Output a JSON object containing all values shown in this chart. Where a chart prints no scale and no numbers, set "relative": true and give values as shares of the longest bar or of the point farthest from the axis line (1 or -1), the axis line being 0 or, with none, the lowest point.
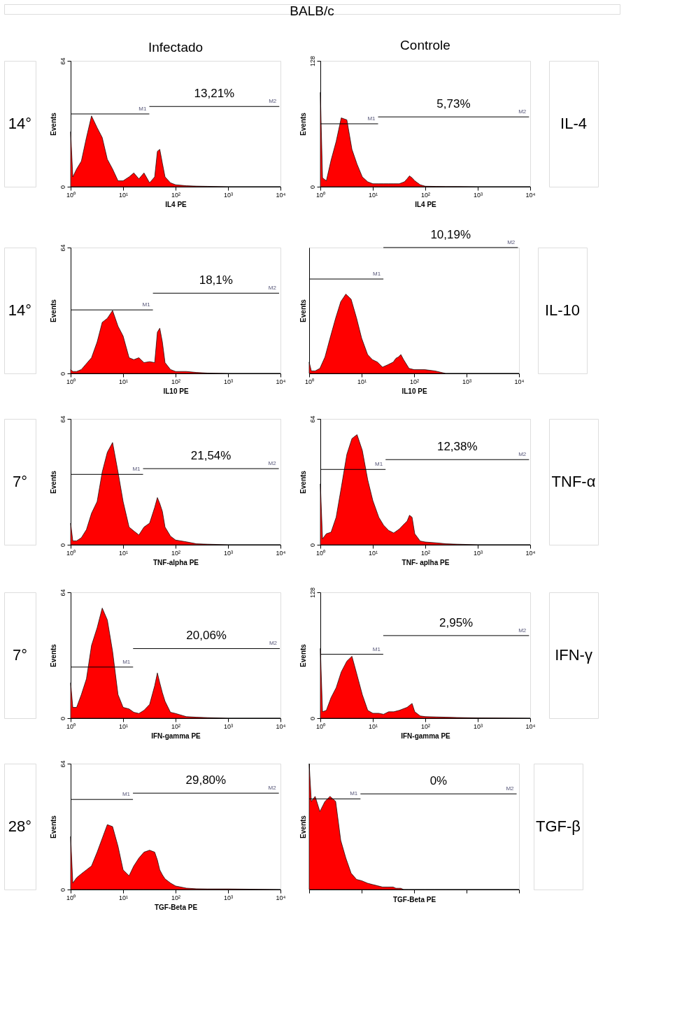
{
  "chart_data": [
    {
      "type": "area",
      "title": "Infectado",
      "subtitle": "BALB/c",
      "xlabel": "IL4 PE",
      "ylabel": "Events",
      "log": "x",
      "grid": false,
      "legend": false,
      "marker": "none",
      "x": [
        1,
        1.1,
        1.3,
        1.6,
        2,
        2.5,
        3.2,
        4,
        5,
        6.3,
        8,
        10,
        13,
        16,
        20,
        25,
        32,
        40,
        45,
        50,
        56,
        63,
        80,
        100,
        160,
        250,
        400,
        1000,
        10000
      ],
      "xlim": [
        1,
        10000
      ],
      "xticks": [
        {
          "value": 1,
          "label": "10⁰"
        },
        {
          "value": 10,
          "label": "10¹"
        },
        {
          "value": 100,
          "label": "10²"
        },
        {
          "value": 1000,
          "label": "10³"
        },
        {
          "value": 10000,
          "label": "10⁴"
        }
      ],
      "ylim": [
        0,
        64
      ],
      "yticks": [
        0,
        64
      ],
      "series": [
        {
          "type": "area",
          "color": "#ff0000",
          "values": [
            28,
            5,
            9,
            13,
            25,
            36,
            30,
            25,
            14,
            9,
            3,
            3,
            5,
            7,
            4,
            7,
            2,
            5,
            18,
            19,
            12,
            5,
            2,
            1,
            0.5,
            0.3,
            0.2,
            0,
            0
          ]
        },
        {
          "type": "line",
          "name": "M1",
          "color": "#000000",
          "x": [
            1,
            31.6
          ],
          "values": [
            37,
            37
          ]
        },
        {
          "type": "line",
          "name": "M2",
          "color": "#000000",
          "x": [
            31.6,
            9500
          ],
          "values": [
            40.8,
            40.8
          ]
        }
      ],
      "annotations": [
        "13,21%",
        "14°"
      ]
    },
    {
      "type": "area",
      "title": "Controle",
      "xlabel": "IL4 PE",
      "ylabel": "Events",
      "log": "x",
      "grid": false,
      "legend": false,
      "marker": "none",
      "x": [
        1,
        1.1,
        1.3,
        1.6,
        2,
        2.5,
        3.2,
        4,
        5,
        6.3,
        8,
        10,
        13,
        16,
        20,
        25,
        32,
        40,
        45,
        50,
        56,
        63,
        80,
        100,
        160,
        250,
        400,
        1000,
        10000
      ],
      "xlim": [
        1,
        10000
      ],
      "xticks": [
        {
          "value": 1,
          "label": "10⁰"
        },
        {
          "value": 10,
          "label": "10¹"
        },
        {
          "value": 100,
          "label": "10²"
        },
        {
          "value": 1000,
          "label": "10³"
        },
        {
          "value": 10000,
          "label": "10⁴"
        }
      ],
      "ylim": [
        0,
        128
      ],
      "yticks": [
        0,
        128
      ],
      "series": [
        {
          "type": "area",
          "color": "#ff0000",
          "values": [
            96,
            9,
            6,
            27,
            46,
            70,
            68,
            38,
            23,
            10,
            5,
            3,
            3,
            3,
            3,
            3,
            3,
            5,
            8,
            11,
            9,
            6,
            2,
            0.5,
            0.3,
            0.2,
            0.2,
            0,
            0
          ]
        },
        {
          "type": "line",
          "name": "M1",
          "color": "#000000",
          "x": [
            1,
            12.6
          ],
          "values": [
            64,
            64
          ]
        },
        {
          "type": "line",
          "name": "M2",
          "color": "#000000",
          "x": [
            12.6,
            9500
          ],
          "values": [
            71,
            71
          ]
        }
      ],
      "annotations": [
        "5,73%",
        "IL-4"
      ]
    },
    {
      "type": "area",
      "xlabel": "IL10 PE",
      "ylabel": "Events",
      "log": "x",
      "grid": false,
      "legend": false,
      "marker": "none",
      "x": [
        1,
        1.1,
        1.3,
        1.6,
        2,
        2.5,
        3.2,
        4,
        5,
        6.3,
        8,
        10,
        13,
        16,
        20,
        25,
        32,
        40,
        45,
        50,
        56,
        63,
        80,
        100,
        160,
        250,
        400,
        1000,
        10000
      ],
      "xlim": [
        1,
        10000
      ],
      "xticks": [
        {
          "value": 1,
          "label": "10⁰"
        },
        {
          "value": 10,
          "label": "10¹"
        },
        {
          "value": 100,
          "label": "10²"
        },
        {
          "value": 1000,
          "label": "10³"
        },
        {
          "value": 10000,
          "label": "10⁴"
        }
      ],
      "ylim": [
        0,
        64
      ],
      "yticks": [
        0,
        64
      ],
      "series": [
        {
          "type": "area",
          "color": "#ff0000",
          "values": [
            2,
            1,
            1,
            2,
            5,
            8,
            16,
            26,
            28,
            32,
            24,
            19,
            8,
            7,
            8,
            5.5,
            6,
            5.5,
            21,
            23,
            16,
            5.5,
            2,
            1,
            1,
            0.5,
            0.2,
            0,
            0
          ]
        },
        {
          "type": "line",
          "name": "M1",
          "color": "#000000",
          "x": [
            1,
            37
          ],
          "values": [
            32.3,
            32.3
          ]
        },
        {
          "type": "line",
          "name": "M2",
          "color": "#000000",
          "x": [
            37,
            9400
          ],
          "values": [
            40.8,
            40.8
          ]
        }
      ],
      "annotations": [
        "18,1%",
        "14°"
      ]
    },
    {
      "type": "area",
      "relative": true,
      "tick_labels": "x",
      "xlabel": "IL10 PE",
      "ylabel": "Events",
      "log": "x",
      "grid": false,
      "legend": false,
      "marker": "none",
      "x": [
        1,
        1.1,
        1.3,
        1.6,
        2,
        2.5,
        3.2,
        4,
        5,
        6.3,
        8,
        10,
        13,
        16,
        20,
        25,
        32,
        40,
        45,
        50,
        56,
        63,
        80,
        100,
        160,
        250,
        400,
        1000,
        10000
      ],
      "xlim": [
        1,
        10000
      ],
      "xticks": [
        {
          "value": 1,
          "label": "10⁰"
        },
        {
          "value": 10,
          "label": "10¹"
        },
        {
          "value": 100,
          "label": "10²"
        },
        {
          "value": 1000,
          "label": "10³"
        },
        {
          "value": 10000,
          "label": "10⁴"
        }
      ],
      "series": [
        {
          "type": "area",
          "color": "#ff0000",
          "values": [
            0.09,
            0.02,
            0.02,
            0.04,
            0.13,
            0.28,
            0.44,
            0.57,
            0.63,
            0.59,
            0.44,
            0.28,
            0.15,
            0.11,
            0.09,
            0.05,
            0.07,
            0.09,
            0.12,
            0.13,
            0.15,
            0.11,
            0.04,
            0.03,
            0.03,
            0.02,
            0,
            0,
            0
          ]
        },
        {
          "type": "line",
          "name": "M1",
          "color": "#000000",
          "x": [
            1,
            26
          ],
          "values": [
            0.75,
            0.75
          ]
        },
        {
          "type": "line",
          "name": "M2",
          "color": "#000000",
          "x": [
            26,
            9500
          ],
          "values": [
            1,
            1
          ]
        }
      ],
      "annotations": [
        "10,19%",
        "IL-10"
      ]
    },
    {
      "type": "area",
      "xlabel": "TNF-alpha PE",
      "ylabel": "Events",
      "log": "x",
      "grid": false,
      "legend": false,
      "marker": "none",
      "x": [
        1,
        1.1,
        1.3,
        1.6,
        2,
        2.5,
        3.2,
        4,
        5,
        6.3,
        8,
        10,
        13,
        16,
        20,
        25,
        32,
        40,
        45,
        50,
        56,
        63,
        80,
        100,
        160,
        250,
        400,
        1000,
        10000
      ],
      "xlim": [
        1,
        10000
      ],
      "xticks": [
        {
          "value": 1,
          "label": "10⁰"
        },
        {
          "value": 10,
          "label": "10¹"
        },
        {
          "value": 100,
          "label": "10²"
        },
        {
          "value": 1000,
          "label": "10³"
        },
        {
          "value": 10000,
          "label": "10⁴"
        }
      ],
      "ylim": [
        0,
        64
      ],
      "yticks": [
        0,
        64
      ],
      "series": [
        {
          "type": "area",
          "color": "#ff0000",
          "values": [
            11,
            2,
            2,
            3.6,
            7.7,
            16,
            22,
            37,
            47,
            52,
            37,
            22,
            9,
            7,
            5,
            9,
            11,
            19,
            24,
            21,
            17,
            9,
            4.4,
            2.4,
            1.5,
            0.5,
            0.3,
            0,
            0
          ]
        },
        {
          "type": "line",
          "name": "M1",
          "color": "#000000",
          "x": [
            1,
            24
          ],
          "values": [
            35.8,
            35.8
          ]
        },
        {
          "type": "line",
          "name": "M2",
          "color": "#000000",
          "x": [
            24,
            9300
          ],
          "values": [
            38.7,
            38.7
          ]
        }
      ],
      "annotations": [
        "21,54%",
        "7°"
      ]
    },
    {
      "type": "area",
      "xlabel": "TNF- aplha PE",
      "ylabel": "Events",
      "log": "x",
      "grid": false,
      "legend": false,
      "marker": "none",
      "x": [
        1,
        1.1,
        1.3,
        1.6,
        2,
        2.5,
        3.2,
        4,
        5,
        6.3,
        8,
        10,
        13,
        16,
        20,
        25,
        32,
        40,
        45,
        50,
        56,
        63,
        80,
        100,
        160,
        250,
        400,
        1000,
        10000
      ],
      "xlim": [
        1,
        10000
      ],
      "xticks": [
        {
          "value": 1,
          "label": "10⁰"
        },
        {
          "value": 10,
          "label": "10¹"
        },
        {
          "value": 100,
          "label": "10²"
        },
        {
          "value": 1000,
          "label": "10³"
        },
        {
          "value": 10000,
          "label": "10⁴"
        }
      ],
      "ylim": [
        0,
        64
      ],
      "yticks": [
        0,
        64
      ],
      "series": [
        {
          "type": "area",
          "color": "#ff0000",
          "values": [
            31,
            3,
            5.6,
            6.4,
            14,
            29,
            46,
            54,
            56,
            48,
            33,
            22.5,
            14,
            10,
            7.3,
            6,
            8,
            10.7,
            12,
            15,
            14,
            5.6,
            1.9,
            1.4,
            1,
            0.5,
            0.3,
            0,
            0
          ]
        },
        {
          "type": "line",
          "name": "M1",
          "color": "#000000",
          "x": [
            1,
            17.5
          ],
          "values": [
            38.3,
            38.3
          ]
        },
        {
          "type": "line",
          "name": "M2",
          "color": "#000000",
          "x": [
            17.5,
            9500
          ],
          "values": [
            43.3,
            43.3
          ]
        }
      ],
      "annotations": [
        "12,38%",
        "TNF-α"
      ]
    },
    {
      "type": "area",
      "xlabel": "IFN-gamma PE",
      "ylabel": "Events",
      "log": "x",
      "grid": false,
      "legend": false,
      "marker": "none",
      "x": [
        1,
        1.1,
        1.3,
        1.6,
        2,
        2.5,
        3.2,
        4,
        5,
        6.3,
        8,
        10,
        13,
        16,
        20,
        25,
        32,
        40,
        45,
        50,
        56,
        63,
        80,
        100,
        160,
        250,
        400,
        1000,
        10000
      ],
      "xlim": [
        1,
        10000
      ],
      "xticks": [
        {
          "value": 1,
          "label": "10⁰"
        },
        {
          "value": 10,
          "label": "10¹"
        },
        {
          "value": 100,
          "label": "10²"
        },
        {
          "value": 1000,
          "label": "10³"
        },
        {
          "value": 10000,
          "label": "10⁴"
        }
      ],
      "ylim": [
        0,
        64
      ],
      "yticks": [
        0,
        64
      ],
      "series": [
        {
          "type": "area",
          "color": "#ff0000",
          "values": [
            18,
            5.5,
            5.5,
            12,
            20,
            37,
            46,
            56,
            50,
            34,
            12,
            5.5,
            4.7,
            3,
            2.4,
            4,
            7,
            16.5,
            23,
            18,
            13,
            8.6,
            3,
            2.4,
            0.8,
            0.5,
            0.3,
            0,
            0
          ]
        },
        {
          "type": "line",
          "name": "M1",
          "color": "#000000",
          "x": [
            1,
            15.5
          ],
          "values": [
            26,
            26
          ]
        },
        {
          "type": "line",
          "name": "M2",
          "color": "#000000",
          "x": [
            15.5,
            9700
          ],
          "values": [
            35.4,
            35.4
          ]
        }
      ],
      "annotations": [
        "20,06%",
        "7°"
      ]
    },
    {
      "type": "area",
      "xlabel": "IFN-gamma PE",
      "ylabel": "Events",
      "log": "x",
      "grid": false,
      "legend": false,
      "marker": "none",
      "x": [
        1,
        1.1,
        1.3,
        1.6,
        2,
        2.5,
        3.2,
        4,
        5,
        6.3,
        8,
        10,
        13,
        16,
        20,
        25,
        32,
        40,
        45,
        50,
        56,
        63,
        80,
        100,
        160,
        250,
        400,
        1000,
        10000
      ],
      "xlim": [
        1,
        10000
      ],
      "xticks": [
        {
          "value": 1,
          "label": "10⁰"
        },
        {
          "value": 10,
          "label": "10¹"
        },
        {
          "value": 100,
          "label": "10²"
        },
        {
          "value": 1000,
          "label": "10³"
        },
        {
          "value": 10000,
          "label": "10⁴"
        }
      ],
      "ylim": [
        0,
        128
      ],
      "yticks": [
        0,
        128
      ],
      "series": [
        {
          "type": "area",
          "color": "#ff0000",
          "values": [
            71,
            6.5,
            8,
            21,
            31,
            47,
            58,
            63,
            44,
            24,
            8,
            5,
            5,
            4,
            6.5,
            6.5,
            8,
            10,
            11,
            13,
            15,
            6.5,
            2.3,
            1.6,
            1.3,
            1,
            0.7,
            0.3,
            0
          ]
        },
        {
          "type": "line",
          "name": "M1",
          "color": "#000000",
          "x": [
            1,
            15.8
          ],
          "values": [
            65,
            65
          ]
        },
        {
          "type": "line",
          "name": "M2",
          "color": "#000000",
          "x": [
            15.8,
            9500
          ],
          "values": [
            84,
            84
          ]
        }
      ],
      "annotations": [
        "2,95%",
        "IFN-γ"
      ]
    },
    {
      "type": "area",
      "xlabel": "TGF-Beta PE",
      "ylabel": "Events",
      "log": "x",
      "grid": false,
      "legend": false,
      "marker": "none",
      "x": [
        1,
        1.1,
        1.3,
        1.6,
        2,
        2.5,
        3.2,
        4,
        5,
        6.3,
        8,
        10,
        13,
        16,
        20,
        25,
        32,
        40,
        45,
        50,
        56,
        63,
        80,
        100,
        160,
        250,
        400,
        1000,
        10000
      ],
      "xlim": [
        1,
        10000
      ],
      "xticks": [
        {
          "value": 1,
          "label": "10⁰"
        },
        {
          "value": 10,
          "label": "10¹"
        },
        {
          "value": 100,
          "label": "10²"
        },
        {
          "value": 1000,
          "label": "10³"
        },
        {
          "value": 10000,
          "label": "10⁴"
        }
      ],
      "ylim": [
        0,
        64
      ],
      "yticks": [
        0,
        64
      ],
      "series": [
        {
          "type": "area",
          "color": "#ff0000",
          "values": [
            27,
            3.3,
            6,
            8,
            10,
            12,
            19,
            26,
            33,
            32,
            22,
            10,
            7,
            12,
            16,
            19,
            20,
            19,
            15,
            10,
            7.5,
            5.4,
            3.3,
            1.8,
            0.7,
            0.4,
            0.3,
            0.3,
            0
          ]
        },
        {
          "type": "line",
          "name": "M1",
          "color": "#000000",
          "x": [
            1,
            15.4
          ],
          "values": [
            45.8,
            45.8
          ]
        },
        {
          "type": "line",
          "name": "M2",
          "color": "#000000",
          "x": [
            15.4,
            9300
          ],
          "values": [
            49,
            49
          ]
        }
      ],
      "annotations": [
        "29,80%",
        "28°"
      ]
    },
    {
      "type": "area",
      "relative": true,
      "tick_labels": false,
      "xlabel": "TGF-Beta PE",
      "ylabel": "Events",
      "log": "x",
      "grid": false,
      "legend": false,
      "marker": "none",
      "x": [
        1,
        1.1,
        1.3,
        1.6,
        2,
        2.5,
        3.2,
        4,
        5,
        6.3,
        8,
        10,
        13,
        16,
        20,
        25,
        32,
        40,
        45,
        50,
        56,
        63,
        80,
        100,
        160,
        250,
        400,
        1000,
        10000
      ],
      "xlim": [
        1,
        10000
      ],
      "xticks": [
        {
          "value": 1,
          "label": null
        },
        {
          "value": 10,
          "label": null
        },
        {
          "value": 100,
          "label": null
        },
        {
          "value": 1000,
          "label": null
        },
        {
          "value": 10000,
          "label": null
        }
      ],
      "series": [
        {
          "type": "area",
          "color": "#ff0000",
          "values": [
            1,
            0.7,
            0.74,
            0.62,
            0.7,
            0.74,
            0.7,
            0.39,
            0.25,
            0.13,
            0.08,
            0.07,
            0.05,
            0.04,
            0.03,
            0.02,
            0.02,
            0.02,
            0.01,
            0.01,
            0.01,
            0,
            0,
            0,
            0,
            0,
            0,
            0,
            0
          ]
        },
        {
          "type": "line",
          "name": "M1",
          "color": "#000000",
          "x": [
            1,
            9.5
          ],
          "values": [
            0.72,
            0.72
          ]
        },
        {
          "type": "line",
          "name": "M2",
          "color": "#000000",
          "x": [
            9.5,
            9000
          ],
          "values": [
            0.76,
            0.76
          ]
        }
      ],
      "annotations": [
        "0%",
        "TGF-β"
      ]
    }
  ]
}
